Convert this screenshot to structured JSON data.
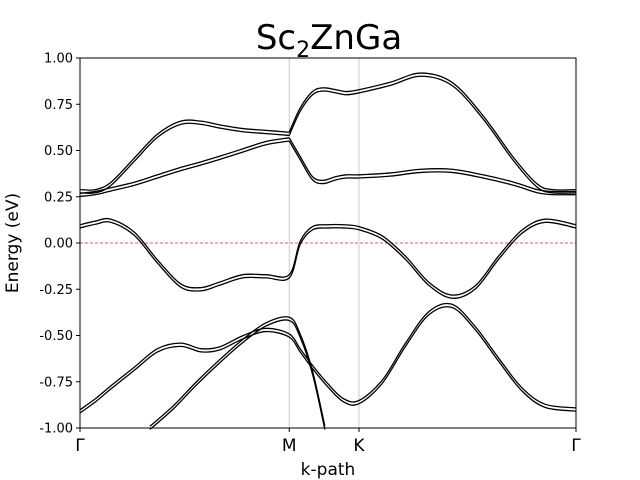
{
  "chart_data": {
    "type": "line",
    "title": "Sc",
    "title_subscript": "2",
    "title_rest": "ZnGa",
    "xlabel": "k-path",
    "ylabel": "Energy (eV)",
    "ylim": [
      -1.0,
      1.0
    ],
    "yticks": [
      "-1.00",
      "-0.75",
      "-0.50",
      "-0.25",
      "0.00",
      "0.25",
      "0.50",
      "0.75",
      "1.00"
    ],
    "ytick_values": [
      -1.0,
      -0.75,
      -0.5,
      -0.25,
      0.0,
      0.25,
      0.5,
      0.75,
      1.0
    ],
    "xlim": [
      0,
      3.2
    ],
    "kpoints": [
      {
        "label": "Γ",
        "x": 0
      },
      {
        "label": "M",
        "x": 1.35
      },
      {
        "label": "K",
        "x": 1.8
      },
      {
        "label": "Γ",
        "x": 3.2
      }
    ],
    "fermi_level": 0.0,
    "fermi_color": "#d62728",
    "line_color": "#000000",
    "grid_color": "#cccccc",
    "series": [
      {
        "x": [
          0,
          0.1,
          0.2,
          0.35,
          0.5,
          0.65,
          0.78,
          0.9,
          1.05,
          1.2,
          1.35
        ],
        "y": [
          0.28,
          0.28,
          0.32,
          0.45,
          0.58,
          0.65,
          0.65,
          0.63,
          0.61,
          0.6,
          0.59
        ]
      },
      {
        "x": [
          0,
          0.1,
          0.2,
          0.35,
          0.5,
          0.65,
          0.78,
          0.9,
          1.05,
          1.2,
          1.35
        ],
        "y": [
          0.26,
          0.27,
          0.29,
          0.32,
          0.36,
          0.4,
          0.43,
          0.46,
          0.5,
          0.54,
          0.56
        ]
      },
      {
        "x": [
          1.35,
          1.42,
          1.5,
          1.57,
          1.65,
          1.72,
          1.8,
          2.0,
          2.2,
          2.4,
          2.6,
          2.8,
          2.95,
          3.05,
          3.2
        ],
        "y": [
          0.59,
          0.72,
          0.81,
          0.83,
          0.82,
          0.81,
          0.82,
          0.86,
          0.91,
          0.86,
          0.68,
          0.45,
          0.31,
          0.28,
          0.28
        ]
      },
      {
        "x": [
          1.35,
          1.42,
          1.5,
          1.57,
          1.65,
          1.72,
          1.8,
          2.0,
          2.2,
          2.4,
          2.6,
          2.8,
          2.95,
          3.05,
          3.2
        ],
        "y": [
          0.56,
          0.46,
          0.35,
          0.33,
          0.35,
          0.36,
          0.36,
          0.37,
          0.39,
          0.39,
          0.36,
          0.32,
          0.28,
          0.27,
          0.27
        ]
      },
      {
        "x": [
          0,
          0.1,
          0.2,
          0.35,
          0.5,
          0.65,
          0.78,
          0.9,
          1.05,
          1.2,
          1.35,
          1.42,
          1.5,
          1.6,
          1.7,
          1.8,
          1.95,
          2.1,
          2.25,
          2.4,
          2.55,
          2.7,
          2.85,
          3.0,
          3.2
        ],
        "y": [
          0.09,
          0.11,
          0.12,
          0.05,
          -0.1,
          -0.23,
          -0.25,
          -0.22,
          -0.18,
          -0.18,
          -0.18,
          0.0,
          0.08,
          0.09,
          0.09,
          0.08,
          0.03,
          -0.08,
          -0.22,
          -0.29,
          -0.24,
          -0.08,
          0.06,
          0.12,
          0.09
        ]
      },
      {
        "x": [
          0,
          0.1,
          0.2,
          0.35,
          0.5,
          0.65,
          0.78,
          0.9,
          1.05,
          1.2,
          1.35,
          1.42,
          1.5,
          1.6,
          1.7,
          1.8,
          1.95,
          2.1,
          2.25,
          2.4,
          2.55,
          2.7,
          2.85,
          3.0,
          3.2
        ],
        "y": [
          -0.91,
          -0.85,
          -0.78,
          -0.68,
          -0.58,
          -0.55,
          -0.58,
          -0.57,
          -0.51,
          -0.47,
          -0.5,
          -0.58,
          -0.67,
          -0.77,
          -0.85,
          -0.86,
          -0.75,
          -0.55,
          -0.38,
          -0.34,
          -0.46,
          -0.63,
          -0.79,
          -0.88,
          -0.9
        ]
      },
      {
        "x": [
          0.45,
          0.6,
          0.75,
          0.9,
          1.05,
          1.2,
          1.35,
          1.42,
          1.5,
          1.58
        ],
        "y": [
          -1.0,
          -0.89,
          -0.76,
          -0.64,
          -0.53,
          -0.44,
          -0.41,
          -0.5,
          -0.7,
          -1.0
        ]
      }
    ]
  }
}
